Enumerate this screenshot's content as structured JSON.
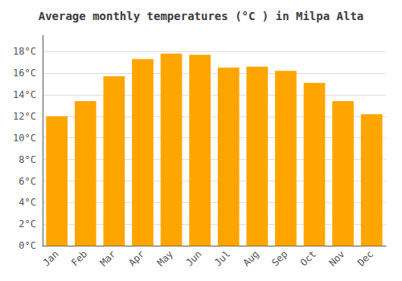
{
  "chart_data": {
    "type": "bar",
    "title": "Average monthly temperatures (°C ) in Milpa Alta",
    "categories": [
      "Jan",
      "Feb",
      "Mar",
      "Apr",
      "May",
      "Jun",
      "Jul",
      "Aug",
      "Sep",
      "Oct",
      "Nov",
      "Dec"
    ],
    "values": [
      12.0,
      13.4,
      15.7,
      17.3,
      17.8,
      17.7,
      16.5,
      16.6,
      16.2,
      15.1,
      13.4,
      12.2
    ],
    "color": "#FFA500",
    "ylim": [
      0,
      19.5
    ],
    "yticks": [
      {
        "value": 0,
        "label": "0°C"
      },
      {
        "value": 2,
        "label": "2°C"
      },
      {
        "value": 4,
        "label": "4°C"
      },
      {
        "value": 6,
        "label": "6°C"
      },
      {
        "value": 8,
        "label": "8°C"
      },
      {
        "value": 10,
        "label": "10°C"
      },
      {
        "value": 12,
        "label": "12°C"
      },
      {
        "value": 14,
        "label": "14°C"
      },
      {
        "value": 16,
        "label": "16°C"
      },
      {
        "value": 18,
        "label": "18°C"
      }
    ],
    "grid": true
  }
}
